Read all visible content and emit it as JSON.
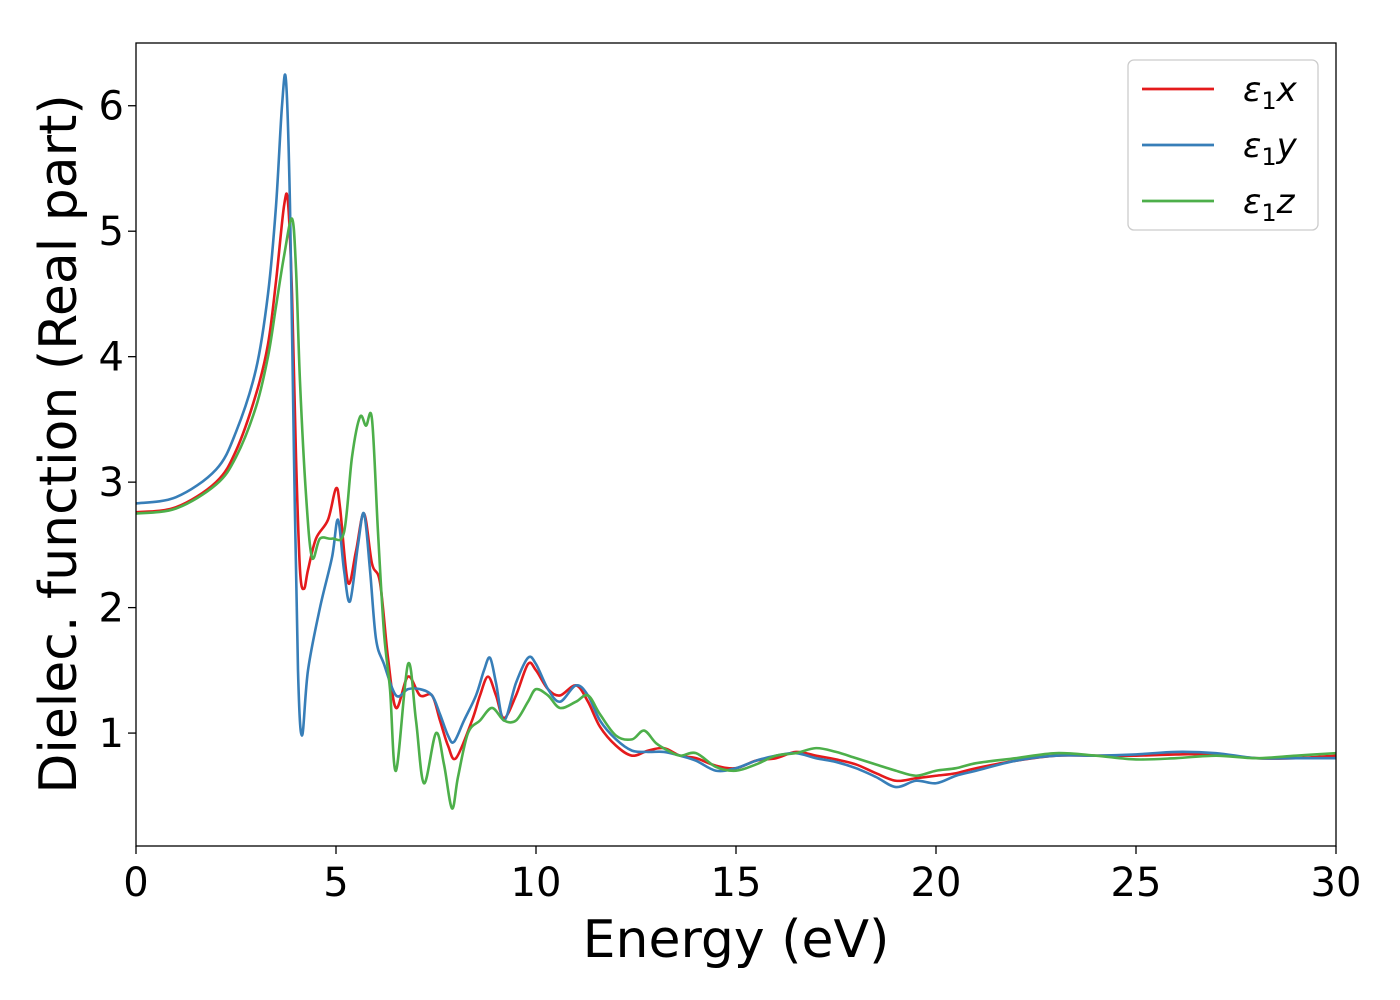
{
  "chart_data": {
    "type": "line",
    "title": "",
    "xlabel": "Energy (eV)",
    "ylabel": "Dielec. function (Real part)",
    "xlim": [
      0,
      30
    ],
    "ylim": [
      0.1,
      6.5
    ],
    "xticks": [
      0,
      5,
      10,
      15,
      20,
      25,
      30
    ],
    "yticks": [
      1,
      2,
      3,
      4,
      5,
      6
    ],
    "grid": false,
    "legend_position": "upper right",
    "series": [
      {
        "name": "ε₁x",
        "label_base": "ε",
        "label_sub": "1",
        "label_suffix": "x",
        "color": "#e41a1c",
        "x": [
          0,
          1,
          2,
          2.5,
          3,
          3.3,
          3.5,
          3.7,
          3.8,
          3.9,
          4.0,
          4.1,
          4.2,
          4.3,
          4.5,
          4.8,
          5.0,
          5.1,
          5.3,
          5.5,
          5.7,
          5.9,
          6.1,
          6.3,
          6.5,
          6.8,
          7.1,
          7.4,
          7.6,
          7.8,
          8.0,
          8.4,
          8.6,
          8.8,
          9.0,
          9.2,
          9.5,
          9.8,
          10.0,
          10.3,
          10.6,
          11.0,
          11.3,
          11.6,
          12.0,
          12.4,
          12.8,
          13.2,
          13.6,
          14.0,
          14.5,
          15.0,
          15.5,
          16.0,
          16.5,
          17.0,
          17.5,
          18.0,
          18.5,
          19.0,
          19.5,
          20.0,
          20.5,
          21.0,
          22.0,
          23.0,
          24.0,
          25.0,
          26.0,
          27.0,
          28.0,
          29.0,
          30.0
        ],
        "y": [
          2.76,
          2.8,
          3.0,
          3.25,
          3.7,
          4.1,
          4.6,
          5.2,
          5.23,
          4.5,
          3.2,
          2.3,
          2.15,
          2.3,
          2.55,
          2.7,
          2.95,
          2.8,
          2.2,
          2.45,
          2.75,
          2.35,
          2.2,
          1.6,
          1.2,
          1.45,
          1.3,
          1.3,
          1.1,
          0.9,
          0.8,
          1.1,
          1.3,
          1.45,
          1.3,
          1.12,
          1.3,
          1.55,
          1.5,
          1.35,
          1.3,
          1.38,
          1.25,
          1.05,
          0.9,
          0.82,
          0.86,
          0.88,
          0.82,
          0.8,
          0.74,
          0.72,
          0.78,
          0.8,
          0.85,
          0.82,
          0.79,
          0.75,
          0.68,
          0.62,
          0.64,
          0.66,
          0.68,
          0.72,
          0.78,
          0.82,
          0.82,
          0.82,
          0.83,
          0.83,
          0.8,
          0.8,
          0.82
        ]
      },
      {
        "name": "ε₁y",
        "label_base": "ε",
        "label_sub": "1",
        "label_suffix": "y",
        "color": "#377eb8",
        "x": [
          0,
          1,
          2,
          2.5,
          3,
          3.3,
          3.5,
          3.65,
          3.75,
          3.85,
          3.95,
          4.05,
          4.15,
          4.3,
          4.6,
          4.9,
          5.05,
          5.2,
          5.35,
          5.55,
          5.7,
          5.85,
          6.0,
          6.2,
          6.5,
          6.8,
          7.1,
          7.4,
          7.6,
          7.8,
          7.95,
          8.2,
          8.5,
          8.7,
          8.85,
          9.0,
          9.2,
          9.5,
          9.8,
          10.0,
          10.3,
          10.6,
          11.0,
          11.3,
          11.6,
          12.0,
          12.4,
          12.8,
          13.2,
          13.6,
          14.0,
          14.5,
          15.0,
          15.5,
          16.0,
          16.5,
          17.0,
          17.5,
          18.0,
          18.5,
          19.0,
          19.5,
          20.0,
          20.5,
          21.0,
          22.0,
          23.0,
          24.0,
          25.0,
          26.0,
          27.0,
          28.0,
          29.0,
          30.0
        ],
        "y": [
          2.83,
          2.88,
          3.1,
          3.4,
          3.9,
          4.5,
          5.2,
          6.0,
          6.2,
          5.2,
          3.2,
          1.5,
          0.98,
          1.5,
          2.0,
          2.4,
          2.7,
          2.3,
          2.05,
          2.5,
          2.75,
          2.3,
          1.75,
          1.55,
          1.3,
          1.35,
          1.35,
          1.3,
          1.15,
          0.98,
          0.93,
          1.1,
          1.3,
          1.5,
          1.6,
          1.4,
          1.1,
          1.4,
          1.6,
          1.55,
          1.35,
          1.25,
          1.38,
          1.3,
          1.1,
          0.95,
          0.86,
          0.85,
          0.85,
          0.82,
          0.78,
          0.7,
          0.72,
          0.78,
          0.82,
          0.84,
          0.8,
          0.77,
          0.72,
          0.65,
          0.57,
          0.62,
          0.6,
          0.66,
          0.7,
          0.78,
          0.82,
          0.82,
          0.83,
          0.85,
          0.84,
          0.8,
          0.8,
          0.8
        ]
      },
      {
        "name": "ε₁z",
        "label_base": "ε",
        "label_sub": "1",
        "label_suffix": "z",
        "color": "#4daf4a",
        "x": [
          0,
          1,
          2,
          2.5,
          3,
          3.3,
          3.5,
          3.7,
          3.9,
          4.0,
          4.1,
          4.25,
          4.4,
          4.6,
          4.9,
          5.2,
          5.4,
          5.6,
          5.75,
          5.9,
          6.05,
          6.2,
          6.35,
          6.5,
          6.8,
          7.0,
          7.2,
          7.5,
          7.7,
          7.9,
          8.05,
          8.3,
          8.6,
          8.9,
          9.2,
          9.5,
          9.8,
          10.0,
          10.3,
          10.6,
          11.0,
          11.3,
          11.6,
          12.0,
          12.4,
          12.7,
          13.0,
          13.3,
          13.6,
          14.0,
          14.5,
          15.0,
          15.5,
          16.0,
          16.5,
          17.0,
          17.5,
          18.0,
          18.5,
          19.0,
          19.5,
          20.0,
          20.5,
          21.0,
          22.0,
          23.0,
          24.0,
          25.0,
          26.0,
          27.0,
          28.0,
          29.0,
          30.0
        ],
        "y": [
          2.75,
          2.79,
          2.98,
          3.2,
          3.6,
          4.0,
          4.4,
          4.8,
          5.1,
          4.7,
          3.8,
          2.9,
          2.4,
          2.55,
          2.55,
          2.6,
          3.2,
          3.52,
          3.45,
          3.5,
          2.6,
          1.8,
          1.35,
          0.7,
          1.55,
          1.1,
          0.6,
          1.0,
          0.75,
          0.4,
          0.65,
          1.0,
          1.1,
          1.2,
          1.1,
          1.1,
          1.25,
          1.35,
          1.3,
          1.2,
          1.25,
          1.3,
          1.15,
          0.98,
          0.95,
          1.02,
          0.92,
          0.86,
          0.82,
          0.84,
          0.73,
          0.7,
          0.75,
          0.82,
          0.84,
          0.88,
          0.85,
          0.8,
          0.75,
          0.7,
          0.66,
          0.7,
          0.72,
          0.76,
          0.8,
          0.84,
          0.82,
          0.79,
          0.8,
          0.82,
          0.8,
          0.82,
          0.84
        ]
      }
    ]
  }
}
